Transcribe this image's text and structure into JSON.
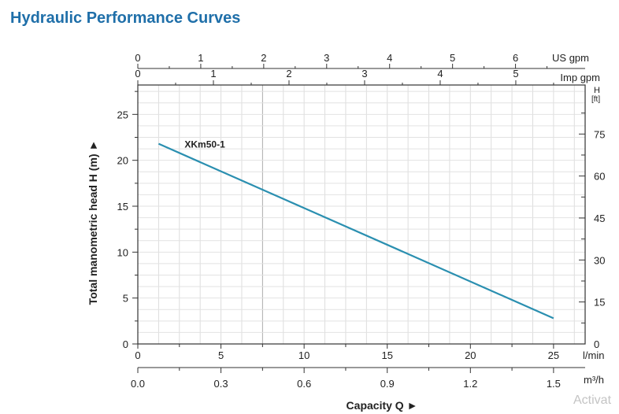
{
  "title": "Hydraulic Performance Curves",
  "watermark": "Activat",
  "chart_data": {
    "type": "line",
    "title": "Hydraulic Performance Curves",
    "xlabel": "Capacity Q ►",
    "ylabel": "Total manometric head H (m) ►",
    "xlim": [
      0,
      26.9
    ],
    "ylim": [
      0,
      28.2
    ],
    "grid": true,
    "series": [
      {
        "name": "XKm50-1",
        "color": "#2a8fb0",
        "x": [
          1.25,
          25
        ],
        "y": [
          21.8,
          2.8
        ]
      }
    ],
    "axes": {
      "lmin": {
        "unit": "l/min",
        "ticks": [
          0,
          5,
          10,
          15,
          20,
          25
        ]
      },
      "m3h": {
        "unit": "m³/h",
        "ticks": [
          "0.0",
          "0.3",
          "0.6",
          "0.9",
          "1.2",
          "1.5"
        ]
      },
      "usgpm": {
        "unit": "US gpm",
        "ticks": [
          0,
          1,
          2,
          3,
          4,
          5,
          6
        ]
      },
      "impgpm": {
        "unit": "Imp gpm",
        "ticks": [
          0,
          1,
          2,
          3,
          4,
          5
        ]
      },
      "hm": {
        "ticks": [
          0,
          5,
          10,
          15,
          20,
          25
        ]
      },
      "hft": {
        "unit_line1": "H",
        "unit_line2": "[ft]",
        "ticks": [
          0,
          15,
          30,
          45,
          60,
          75
        ]
      }
    }
  }
}
